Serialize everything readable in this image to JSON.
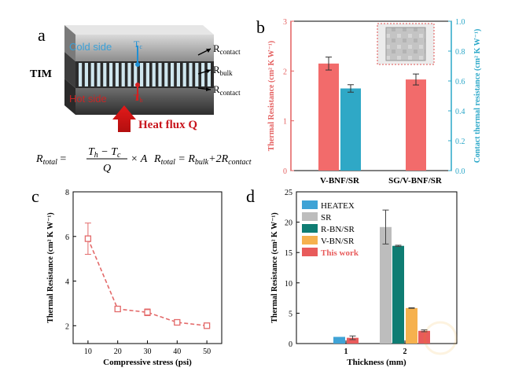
{
  "panel_labels": {
    "a": "a",
    "b": "b",
    "c": "c",
    "d": "d"
  },
  "schematic": {
    "cold_side": "Cold side",
    "hot_side": "Hot side",
    "tim": "TIM",
    "tc": "T",
    "tc_sub": "c",
    "th": "T",
    "th_sub": "h",
    "r_contact_top": "R",
    "r_contact_top_sub": "contact",
    "r_bulk": "R",
    "r_bulk_sub": "bulk",
    "r_contact_bottom": "R",
    "r_contact_bottom_sub": "contact",
    "heat_flux": "Heat flux Q",
    "eq1_lhs": "R",
    "eq1_lhs_sub": "total",
    "eq1_num": "T",
    "eq1_num_h": "h",
    "eq1_minus": " − T",
    "eq1_num_c": "c",
    "eq1_den": "Q",
    "eq1_times": "× A",
    "eq2_lhs": "R",
    "eq2_lhs_sub": "total",
    "eq2_rhs1": " = R",
    "eq2_rhs1_sub": "bulk",
    "eq2_rhs2": "+2R",
    "eq2_rhs2_sub": "contact"
  },
  "colors": {
    "red_bar": "#f26b6b",
    "teal_bar": "#2fa8c6",
    "red_axis": "#e45f5f",
    "teal_axis": "#2aa7c8",
    "dash_red": "#e36a6a",
    "heatex": "#3fa3d6",
    "sr": "#bdbdbd",
    "rbn": "#0f7d73",
    "vbn": "#f6b14e",
    "thiswork": "#e85b5b"
  },
  "chart_data": [
    {
      "panel": "b",
      "type": "bar",
      "categories": [
        "V-BNF/SR",
        "SG/V-BNF/SR"
      ],
      "series": [
        {
          "name": "Thermal Resistance",
          "axis": "left",
          "values": [
            2.15,
            1.83
          ],
          "errors": [
            0.13,
            0.11
          ]
        },
        {
          "name": "Contact thermal resistance",
          "axis": "right",
          "values": [
            0.55,
            null
          ],
          "errors": [
            0.025,
            null
          ]
        }
      ],
      "ylabel_left": "Thermal Resistance (cm² K W⁻¹)",
      "ylabel_right": "Contact thermal resistance (cm² K W⁻¹)",
      "ylim_left": [
        0,
        3
      ],
      "ylim_right": [
        0,
        1.0
      ],
      "yticks_left": [
        "0",
        "1",
        "2",
        "3"
      ],
      "yticks_right": [
        "0.0",
        "0.2",
        "0.4",
        "0.6",
        "0.8",
        "1.0"
      ]
    },
    {
      "panel": "c",
      "type": "line",
      "x": [
        10,
        20,
        30,
        40,
        50
      ],
      "y": [
        5.9,
        2.75,
        2.6,
        2.15,
        2.0
      ],
      "errors": [
        0.7,
        0.08,
        0.15,
        0.1,
        0.06
      ],
      "xlabel": "Compressive stress (psi)",
      "ylabel": "Thermal Resistance (cm² K W⁻¹)",
      "xlim": [
        5,
        55
      ],
      "ylim": [
        1.2,
        8
      ],
      "xticks": [
        "10",
        "20",
        "30",
        "40",
        "50"
      ],
      "yticks": [
        "2",
        "4",
        "6",
        "8"
      ]
    },
    {
      "panel": "d",
      "type": "bar",
      "categories": [
        "1",
        "2"
      ],
      "xlabel": "Thickness (mm)",
      "ylabel": "Thermal Resistance (cm² K W⁻¹)",
      "ylim": [
        0,
        25
      ],
      "yticks": [
        "0",
        "5",
        "10",
        "15",
        "20",
        "25"
      ],
      "legend": [
        "HEATEX",
        "SR",
        "R-BN/SR",
        "V-BN/SR",
        "This work"
      ],
      "series": [
        {
          "name": "HEATEX",
          "values": [
            1.1,
            null
          ],
          "errors": [
            0.0,
            null
          ]
        },
        {
          "name": "SR",
          "values": [
            null,
            19.2
          ],
          "errors": [
            null,
            2.8
          ]
        },
        {
          "name": "R-BN/SR",
          "values": [
            null,
            16.1
          ],
          "errors": [
            null,
            0.1
          ]
        },
        {
          "name": "V-BN/SR",
          "values": [
            null,
            5.85
          ],
          "errors": [
            null,
            0.05
          ]
        },
        {
          "name": "This work",
          "values": [
            0.95,
            2.1
          ],
          "errors": [
            0.3,
            0.15
          ]
        }
      ]
    }
  ]
}
